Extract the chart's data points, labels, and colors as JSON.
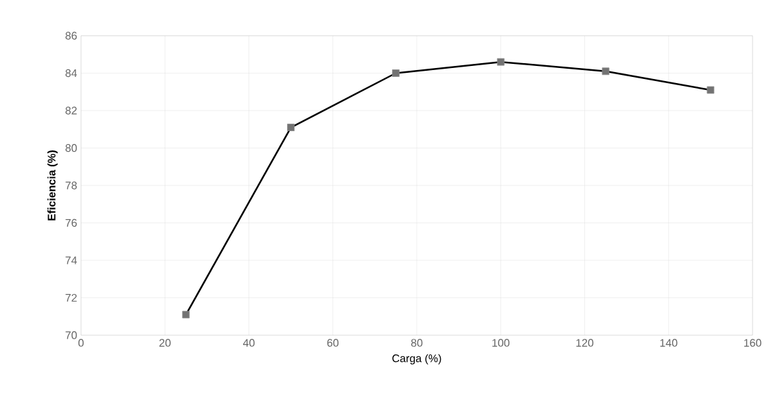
{
  "chart_data": {
    "type": "line",
    "xlabel": "Carga (%)",
    "ylabel": "Eficiencia  (%)",
    "x": [
      25,
      50,
      75,
      100,
      125,
      150
    ],
    "series": [
      {
        "color": "#000000",
        "values": [
          71.1,
          81.1,
          84.0,
          84.6,
          84.1,
          83.1
        ]
      }
    ],
    "xlim": [
      0,
      160
    ],
    "xticks": [
      0,
      20,
      40,
      60,
      80,
      100,
      120,
      140,
      160
    ],
    "ylim": [
      70,
      86
    ],
    "yticks": [
      70,
      72,
      74,
      76,
      78,
      80,
      82,
      84,
      86
    ],
    "grid": true,
    "marker": "square",
    "line_style": "solid"
  }
}
